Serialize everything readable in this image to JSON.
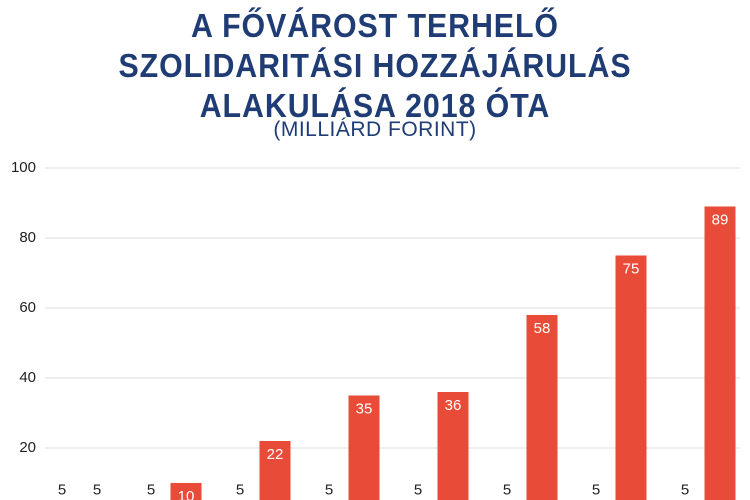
{
  "chart_data": {
    "type": "bar",
    "title": "A FŐVÁROST TERHELŐ SZOLIDARITÁSI HOZZÁJÁRULÁS ALAKULÁSA 2018 ÓTA",
    "subtitle": "(MILLIÁRD FORINT)",
    "categories": [
      null,
      null,
      null,
      null,
      null,
      null,
      null,
      null
    ],
    "series": [
      {
        "color": "#1f3c74",
        "values": [
          5,
          5,
          5,
          5,
          5,
          5,
          5,
          5
        ]
      },
      {
        "color": "#e84b37",
        "values": [
          5,
          10,
          22,
          35,
          36,
          58,
          75,
          89
        ]
      }
    ],
    "ylim": [
      0,
      100
    ],
    "yticks": [
      20,
      40,
      60,
      80,
      100
    ],
    "grid": true
  }
}
